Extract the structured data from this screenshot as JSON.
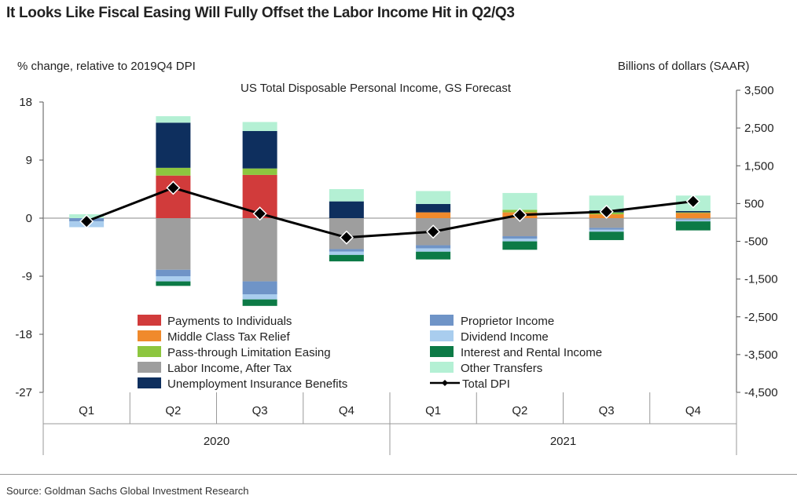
{
  "title": "It Looks Like Fiscal Easing Will Fully Offset the Labor Income Hit in Q2/Q3",
  "source": "Source: Goldman Sachs Global Investment Research",
  "chart_data": {
    "type": "bar",
    "stacked": true,
    "subtitle": "US Total Disposable Personal Income, GS Forecast",
    "ylabel_left": "% change, relative to 2019Q4 DPI",
    "ylabel_right": "Billions of dollars (SAAR)",
    "ylim_left": [
      -27,
      18
    ],
    "yticks_left": [
      18,
      9,
      0,
      -9,
      -18,
      -27
    ],
    "ylim_right": [
      -4500,
      3500
    ],
    "yticks_right": [
      "3,500",
      "2,500",
      "1,500",
      "500",
      "-500",
      "-1,500",
      "-2,500",
      "-3,500",
      "-4,500"
    ],
    "yticks_right_values": [
      3500,
      2500,
      1500,
      500,
      -500,
      -1500,
      -2500,
      -3500,
      -4500
    ],
    "categories": [
      "Q1",
      "Q2",
      "Q3",
      "Q4",
      "Q1",
      "Q2",
      "Q3",
      "Q4"
    ],
    "year_groups": [
      {
        "label": "2020",
        "start": 0,
        "end": 3
      },
      {
        "label": "2021",
        "start": 4,
        "end": 7
      }
    ],
    "grid": false,
    "legend_position": "bottom-center",
    "series": [
      {
        "name": "Payments to Individuals",
        "color": "#d13b3b",
        "values": [
          0,
          6.6,
          6.7,
          0,
          0,
          0,
          0,
          0
        ]
      },
      {
        "name": "Middle Class Tax Relief",
        "color": "#f08a2c",
        "values": [
          0,
          0,
          0,
          0,
          0.9,
          0.9,
          0.6,
          0.8
        ]
      },
      {
        "name": "Pass-through Limitation Easing",
        "color": "#8dc63f",
        "values": [
          0,
          1.2,
          1.0,
          0,
          0,
          0.4,
          0.3,
          0.1
        ]
      },
      {
        "name": "Labor Income, After Tax",
        "color": "#9e9e9e",
        "values": [
          0,
          -8.0,
          -9.8,
          -4.8,
          -4.2,
          -2.8,
          -1.5,
          -0.2
        ]
      },
      {
        "name": "Unemployment Insurance Benefits",
        "color": "#0e2f5e",
        "values": [
          0,
          7.0,
          5.8,
          2.6,
          1.3,
          0,
          0.3,
          0.2
        ]
      },
      {
        "name": "Proprietor Income",
        "color": "#6f94c7",
        "values": [
          -0.5,
          -1.0,
          -2.0,
          -0.4,
          -0.5,
          -0.4,
          -0.3,
          -0.1
        ]
      },
      {
        "name": "Dividend Income",
        "color": "#a9cdee",
        "values": [
          -0.9,
          -0.8,
          -0.8,
          -0.5,
          -0.5,
          -0.4,
          -0.3,
          -0.2
        ]
      },
      {
        "name": "Interest and Rental Income",
        "color": "#0c7a46",
        "values": [
          0,
          -0.7,
          -1.0,
          -1.0,
          -1.2,
          -1.3,
          -1.3,
          -1.4
        ]
      },
      {
        "name": "Other Transfers",
        "color": "#b4f0d4",
        "values": [
          0.6,
          1.0,
          1.4,
          1.9,
          2.0,
          2.6,
          2.3,
          2.4
        ]
      }
    ],
    "line_series": {
      "name": "Total DPI",
      "color": "#000000",
      "values": [
        -0.5,
        4.7,
        0.7,
        -3.0,
        -2.1,
        0.5,
        1.0,
        2.6
      ]
    }
  }
}
